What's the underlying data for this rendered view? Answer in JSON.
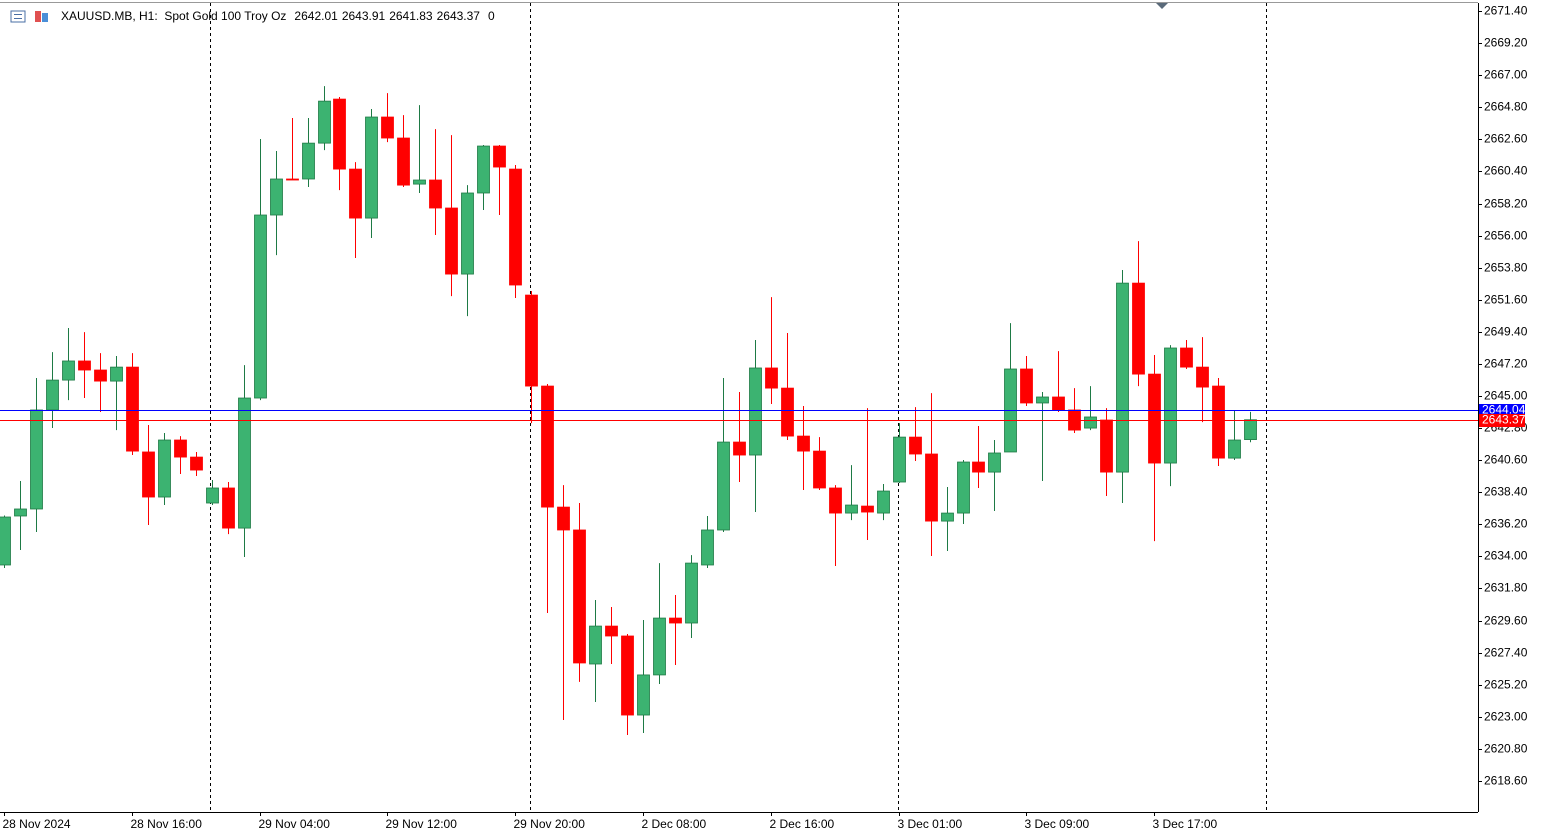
{
  "chart_data": {
    "type": "candlestick",
    "title": "XAUUSD.MB, H1:  Spot Gold 100 Troy Oz",
    "spread": 0,
    "up_color": "#3cb371",
    "down_color": "#ff0000",
    "ylim": [
      2616.47,
      2671.95
    ],
    "yticks": [
      {
        "value": 2671.4,
        "label": "2671.40"
      },
      {
        "value": 2669.2,
        "label": "2669.20"
      },
      {
        "value": 2667.0,
        "label": "2667.00"
      },
      {
        "value": 2664.8,
        "label": "2664.80"
      },
      {
        "value": 2662.6,
        "label": "2662.60"
      },
      {
        "value": 2660.4,
        "label": "2660.40"
      },
      {
        "value": 2658.2,
        "label": "2658.20"
      },
      {
        "value": 2656.0,
        "label": "2656.00"
      },
      {
        "value": 2653.8,
        "label": "2653.80"
      },
      {
        "value": 2651.6,
        "label": "2651.60"
      },
      {
        "value": 2649.4,
        "label": "2649.40"
      },
      {
        "value": 2647.2,
        "label": "2647.20"
      },
      {
        "value": 2645.0,
        "label": "2645.00"
      },
      {
        "value": 2642.8,
        "label": "2642.80"
      },
      {
        "value": 2640.6,
        "label": "2640.60"
      },
      {
        "value": 2638.4,
        "label": "2638.40"
      },
      {
        "value": 2636.2,
        "label": "2636.20"
      },
      {
        "value": 2634.0,
        "label": "2634.00"
      },
      {
        "value": 2631.8,
        "label": "2631.80"
      },
      {
        "value": 2629.6,
        "label": "2629.60"
      },
      {
        "value": 2627.4,
        "label": "2627.40"
      },
      {
        "value": 2625.2,
        "label": "2625.20"
      },
      {
        "value": 2623.0,
        "label": "2623.00"
      },
      {
        "value": 2620.8,
        "label": "2620.80"
      },
      {
        "value": 2618.6,
        "label": "2618.60"
      }
    ],
    "ask_line": {
      "value": 2644.04,
      "label": "2644.04",
      "color": "#0000ff"
    },
    "bid_line": {
      "value": 2643.37,
      "label": "2643.37",
      "color": "#ff0000"
    },
    "categories": [
      "28 Nov 2024",
      null,
      null,
      null,
      null,
      null,
      null,
      null,
      "28 Nov 16:00",
      null,
      null,
      null,
      null,
      null,
      null,
      null,
      "29 Nov 04:00",
      null,
      null,
      null,
      null,
      null,
      null,
      null,
      "29 Nov 12:00",
      null,
      null,
      null,
      null,
      null,
      null,
      null,
      "29 Nov 20:00",
      null,
      null,
      null,
      null,
      null,
      null,
      null,
      "2 Dec 08:00",
      null,
      null,
      null,
      null,
      null,
      null,
      null,
      "2 Dec 16:00",
      null,
      null,
      null,
      null,
      null,
      null,
      null,
      "3 Dec 01:00",
      null,
      null,
      null,
      null,
      null,
      null,
      null,
      "3 Dec 09:00",
      null,
      null,
      null,
      null,
      null,
      null,
      null,
      "3 Dec 17:00",
      null,
      null,
      null,
      null,
      null,
      null
    ],
    "open": [
      2633.41,
      2636.77,
      2637.25,
      2644.04,
      2646.09,
      2647.4,
      2646.78,
      2646.02,
      2646.98,
      2641.16,
      2638.07,
      2641.98,
      2640.81,
      2637.66,
      2638.69,
      2635.94,
      2644.86,
      2657.41,
      2659.88,
      2659.88,
      2662.34,
      2665.36,
      2660.56,
      2657.2,
      2664.13,
      2662.69,
      2659.53,
      2659.81,
      2657.89,
      2653.36,
      2658.92,
      2662.14,
      2660.56,
      2651.92,
      2645.68,
      2637.38,
      2635.81,
      2626.62,
      2629.22,
      2628.54,
      2623.12,
      2625.87,
      2629.77,
      2629.43,
      2633.41,
      2635.81,
      2641.84,
      2640.95,
      2646.92,
      2645.54,
      2642.25,
      2641.22,
      2638.69,
      2636.97,
      2637.45,
      2636.97,
      2639.1,
      2642.18,
      2641.02,
      2636.42,
      2636.97,
      2640.47,
      2639.78,
      2641.16,
      2646.85,
      2644.52,
      2644.93,
      2644.04,
      2642.8,
      2643.35,
      2639.78,
      2652.74,
      2646.5,
      2640.4,
      2648.29,
      2646.98,
      2645.68,
      2640.74,
      2642.01
    ],
    "high": [
      2636.8,
      2639.17,
      2646.23,
      2648.01,
      2649.66,
      2649.38,
      2647.94,
      2647.74,
      2647.94,
      2643.01,
      2642.46,
      2642.25,
      2641.16,
      2639.24,
      2639.1,
      2647.12,
      2662.62,
      2661.8,
      2664.06,
      2664.06,
      2666.25,
      2665.5,
      2661.04,
      2664.68,
      2665.77,
      2664.26,
      2664.95,
      2663.3,
      2662.89,
      2659.46,
      2662.21,
      2662.21,
      2660.84,
      2652.2,
      2645.82,
      2638.89,
      2637.66,
      2631.01,
      2630.53,
      2628.68,
      2629.64,
      2633.54,
      2631.35,
      2634.09,
      2636.77,
      2646.23,
      2645.27,
      2648.84,
      2651.78,
      2649.32,
      2644.31,
      2642.18,
      2638.89,
      2640.26,
      2644.17,
      2638.96,
      2643.14,
      2644.24,
      2645.2,
      2638.76,
      2640.61,
      2642.94,
      2641.98,
      2650.0,
      2647.74,
      2645.27,
      2648.08,
      2645.54,
      2645.68,
      2644.17,
      2653.64,
      2655.62,
      2647.81,
      2648.49,
      2648.84,
      2649.04,
      2646.23,
      2644.04,
      2643.91
    ],
    "low": [
      2633.2,
      2634.44,
      2635.67,
      2642.8,
      2644.72,
      2644.86,
      2643.9,
      2642.66,
      2640.95,
      2636.15,
      2637.52,
      2639.65,
      2639.51,
      2637.52,
      2635.53,
      2633.96,
      2644.72,
      2654.66,
      2659.81,
      2659.33,
      2661.86,
      2659.12,
      2654.46,
      2655.83,
      2662.41,
      2659.33,
      2658.92,
      2656.04,
      2651.85,
      2650.48,
      2657.75,
      2657.41,
      2651.72,
      2643.14,
      2630.12,
      2622.78,
      2625.39,
      2624.01,
      2626.62,
      2621.75,
      2621.89,
      2625.25,
      2626.55,
      2628.4,
      2633.2,
      2635.67,
      2639.1,
      2637.04,
      2644.45,
      2641.98,
      2638.55,
      2638.55,
      2633.34,
      2636.49,
      2635.12,
      2636.49,
      2639.03,
      2640.54,
      2634.03,
      2634.37,
      2636.22,
      2638.69,
      2637.11,
      2641.16,
      2644.31,
      2639.17,
      2643.9,
      2642.46,
      2642.66,
      2638.14,
      2637.66,
      2645.68,
      2635.05,
      2638.82,
      2646.85,
      2643.21,
      2640.2,
      2640.61,
      2641.83
    ],
    "close": [
      2636.7,
      2637.25,
      2644.04,
      2646.09,
      2647.4,
      2646.78,
      2646.02,
      2646.98,
      2641.22,
      2638.07,
      2641.98,
      2640.81,
      2639.92,
      2638.69,
      2635.94,
      2644.86,
      2657.41,
      2659.88,
      2659.81,
      2662.34,
      2665.22,
      2660.56,
      2657.2,
      2664.13,
      2662.69,
      2659.46,
      2659.81,
      2657.89,
      2653.36,
      2658.92,
      2662.14,
      2660.7,
      2652.61,
      2645.68,
      2637.38,
      2635.81,
      2626.69,
      2629.22,
      2628.54,
      2623.12,
      2625.87,
      2629.77,
      2629.43,
      2633.54,
      2635.81,
      2641.84,
      2640.95,
      2646.92,
      2645.54,
      2642.25,
      2641.22,
      2638.69,
      2636.97,
      2637.52,
      2637.04,
      2638.48,
      2642.18,
      2641.02,
      2636.42,
      2636.97,
      2640.47,
      2639.78,
      2641.09,
      2646.85,
      2644.52,
      2644.93,
      2644.04,
      2642.66,
      2643.56,
      2639.78,
      2652.74,
      2646.5,
      2640.4,
      2648.29,
      2646.98,
      2645.61,
      2640.74,
      2641.98,
      2643.37
    ]
  }
}
